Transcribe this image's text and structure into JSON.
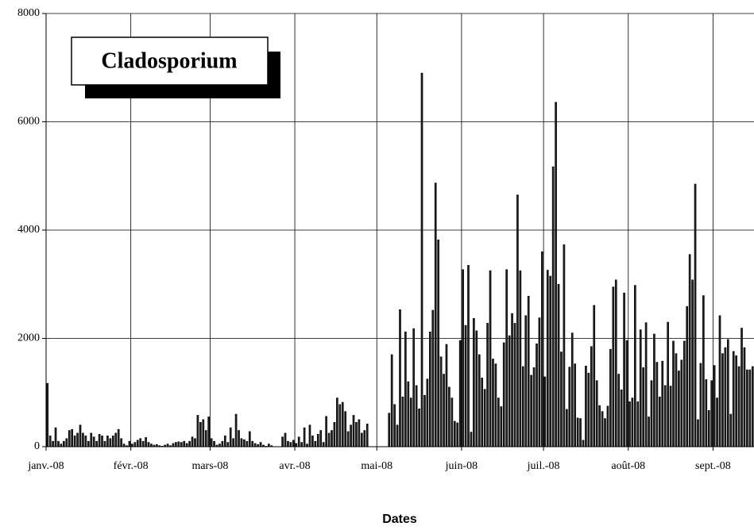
{
  "chart_data": {
    "type": "bar",
    "title": "Cladosporium",
    "x_label": "Dates",
    "color": "#222222",
    "grid": true,
    "ylim": [
      0,
      8000
    ],
    "yticks": [
      0,
      2000,
      4000,
      6000,
      8000
    ],
    "categories": [
      "janv.-08",
      null,
      null,
      null,
      null,
      null,
      null,
      null,
      null,
      null,
      null,
      null,
      null,
      null,
      null,
      null,
      null,
      null,
      null,
      null,
      null,
      null,
      null,
      null,
      null,
      null,
      null,
      null,
      null,
      null,
      null,
      "févr.-08",
      null,
      null,
      null,
      null,
      null,
      null,
      null,
      null,
      null,
      null,
      null,
      null,
      null,
      null,
      null,
      null,
      null,
      null,
      null,
      null,
      null,
      null,
      null,
      null,
      null,
      null,
      null,
      null,
      "mars-08",
      null,
      null,
      null,
      null,
      null,
      null,
      null,
      null,
      null,
      null,
      null,
      null,
      null,
      null,
      null,
      null,
      null,
      null,
      null,
      null,
      null,
      null,
      null,
      null,
      null,
      null,
      null,
      null,
      null,
      null,
      "avr.-08",
      null,
      null,
      null,
      null,
      null,
      null,
      null,
      null,
      null,
      null,
      null,
      null,
      null,
      null,
      null,
      null,
      null,
      null,
      null,
      null,
      null,
      null,
      null,
      null,
      null,
      null,
      null,
      null,
      null,
      "mai-08",
      null,
      null,
      null,
      null,
      null,
      null,
      null,
      null,
      null,
      null,
      null,
      null,
      null,
      null,
      null,
      null,
      null,
      null,
      null,
      null,
      null,
      null,
      null,
      null,
      null,
      null,
      null,
      null,
      null,
      null,
      "juin-08",
      null,
      null,
      null,
      null,
      null,
      null,
      null,
      null,
      null,
      null,
      null,
      null,
      null,
      null,
      null,
      null,
      null,
      null,
      null,
      null,
      null,
      null,
      null,
      null,
      null,
      null,
      null,
      null,
      null,
      "juil.-08",
      null,
      null,
      null,
      null,
      null,
      null,
      null,
      null,
      null,
      null,
      null,
      null,
      null,
      null,
      null,
      null,
      null,
      null,
      null,
      null,
      null,
      null,
      null,
      null,
      null,
      null,
      null,
      null,
      null,
      null,
      "août-08",
      null,
      null,
      null,
      null,
      null,
      null,
      null,
      null,
      null,
      null,
      null,
      null,
      null,
      null,
      null,
      null,
      null,
      null,
      null,
      null,
      null,
      null,
      null,
      null,
      null,
      null,
      null,
      null,
      null,
      null,
      "sept.-08",
      null,
      null,
      null,
      null,
      null,
      null,
      null,
      null,
      null,
      null,
      null,
      null,
      null,
      null
    ],
    "values": [
      1170,
      200,
      100,
      350,
      100,
      50,
      100,
      150,
      300,
      320,
      200,
      250,
      400,
      250,
      200,
      100,
      250,
      180,
      100,
      230,
      200,
      100,
      200,
      150,
      200,
      250,
      320,
      150,
      50,
      20,
      100,
      50,
      80,
      120,
      150,
      100,
      170,
      80,
      50,
      30,
      40,
      20,
      10,
      30,
      50,
      20,
      60,
      80,
      90,
      80,
      100,
      60,
      100,
      180,
      150,
      580,
      450,
      500,
      300,
      550,
      150,
      100,
      30,
      50,
      100,
      200,
      80,
      350,
      150,
      600,
      300,
      150,
      130,
      100,
      280,
      100,
      60,
      40,
      80,
      30,
      10,
      50,
      20,
      0,
      0,
      0,
      180,
      250,
      100,
      80,
      120,
      60,
      180,
      80,
      350,
      50,
      400,
      200,
      100,
      230,
      300,
      80,
      560,
      250,
      300,
      450,
      900,
      780,
      820,
      650,
      280,
      400,
      580,
      450,
      500,
      250,
      300,
      420,
      null,
      null,
      null,
      null,
      null,
      null,
      null,
      620,
      1700,
      780,
      400,
      2530,
      920,
      2120,
      1200,
      900,
      2180,
      1130,
      700,
      6900,
      950,
      1250,
      2120,
      2520,
      4870,
      3820,
      1660,
      1340,
      1890,
      1100,
      900,
      470,
      440,
      1960,
      3270,
      2240,
      3350,
      270,
      2370,
      2140,
      1700,
      1270,
      1060,
      2280,
      3250,
      1620,
      1530,
      900,
      740,
      1920,
      3270,
      2050,
      2460,
      2280,
      4650,
      3250,
      1480,
      2420,
      2780,
      1320,
      1460,
      1900,
      2380,
      3600,
      1290,
      3260,
      3150,
      5170,
      6360,
      3000,
      1750,
      3730,
      690,
      1470,
      2100,
      1530,
      530,
      520,
      120,
      1490,
      1360,
      1850,
      2610,
      1220,
      760,
      650,
      520,
      750,
      1800,
      2950,
      3080,
      1340,
      1050,
      2840,
      1960,
      830,
      900,
      2980,
      830,
      2160,
      1460,
      2290,
      550,
      1220,
      2080,
      1560,
      920,
      1580,
      1130,
      2300,
      1120,
      1950,
      1720,
      1400,
      1600,
      1950,
      2590,
      3550,
      3080,
      4850,
      500,
      1540,
      2790,
      1240,
      670,
      1220,
      1500,
      900,
      2420,
      1720,
      1830,
      1980,
      600,
      1760,
      1680,
      1480,
      2190,
      1830,
      1420,
      1420,
      1480
    ]
  }
}
